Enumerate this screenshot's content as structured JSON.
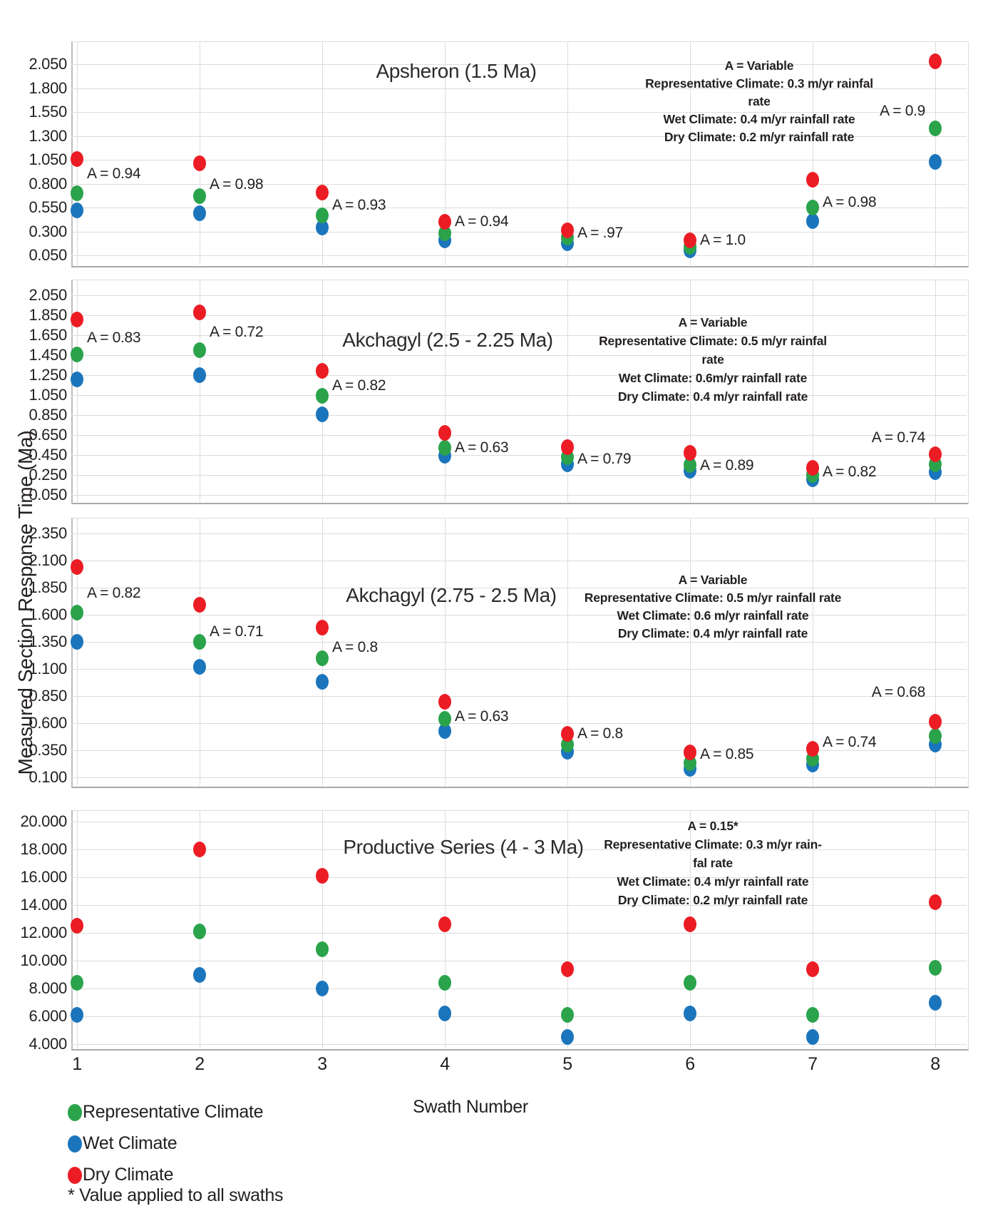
{
  "figure": {
    "y_axis_label": "Measured Section Response Time (Ma)",
    "x_axis_label": "Swath Number",
    "x_ticks": [
      "1",
      "2",
      "3",
      "4",
      "5",
      "6",
      "7",
      "8"
    ],
    "footnote": "* Value applied to all swaths"
  },
  "colors": {
    "representative": "#2AA34B",
    "wet": "#1B75BC",
    "dry": "#EC1C24",
    "grid": "#DCDCDC",
    "axis": "#A9A9A9",
    "text": "#231F20"
  },
  "legend": [
    {
      "series": "representative",
      "label": "Representative Climate"
    },
    {
      "series": "wet",
      "label": "Wet Climate"
    },
    {
      "series": "dry",
      "label": "Dry Climate"
    }
  ],
  "chart_data": [
    {
      "type": "scatter",
      "title": "Apsheron (1.5 Ma)",
      "x": [
        1,
        2,
        3,
        4,
        5,
        6,
        7,
        8
      ],
      "xlabel": "Swath Number",
      "ylabel": "Measured Section Response Time (Ma)",
      "y_ticks": [
        "2.050",
        "1.800",
        "1.550",
        "1.300",
        "1.050",
        "0.800",
        "0.550",
        "0.300",
        "0.050"
      ],
      "ylim": [
        -0.05,
        2.29
      ],
      "grid": true,
      "series": [
        {
          "name": "Representative Climate",
          "key": "representative",
          "values": [
            0.7,
            0.67,
            0.47,
            0.28,
            0.24,
            0.14,
            0.55,
            1.38
          ]
        },
        {
          "name": "Wet Climate",
          "key": "wet",
          "values": [
            0.52,
            0.49,
            0.34,
            0.21,
            0.18,
            0.1,
            0.41,
            1.03
          ]
        },
        {
          "name": "Dry Climate",
          "key": "dry",
          "values": [
            1.06,
            1.01,
            0.71,
            0.4,
            0.31,
            0.21,
            0.84,
            2.08
          ]
        }
      ],
      "point_labels": [
        {
          "text": "A = 0.94",
          "swath": 1,
          "y": 0.9,
          "side": "right"
        },
        {
          "text": "A = 0.98",
          "swath": 2,
          "y": 0.79,
          "side": "right"
        },
        {
          "text": "A = 0.93",
          "swath": 3,
          "y": 0.57,
          "side": "right"
        },
        {
          "text": "A = 0.94",
          "swath": 4,
          "y": 0.4,
          "side": "right"
        },
        {
          "text": "A = .97",
          "swath": 5,
          "y": 0.28,
          "side": "right"
        },
        {
          "text": "A = 1.0",
          "swath": 6,
          "y": 0.21,
          "side": "right"
        },
        {
          "text": "A = 0.98",
          "swath": 7,
          "y": 0.6,
          "side": "right"
        },
        {
          "text": "A = 0.9",
          "swath": 8,
          "y": 1.56,
          "side": "left"
        }
      ],
      "annotation_lines": [
        "A = Variable",
        "Representative Climate: 0.3 m/yr rainfal",
        "rate",
        "Wet Climate: 0.4 m/yr rainfall rate",
        "Dry Climate: 0.2 m/yr rainfall rate"
      ]
    },
    {
      "type": "scatter",
      "title": "Akchagyl (2.5 - 2.25 Ma)",
      "x": [
        1,
        2,
        3,
        4,
        5,
        6,
        7,
        8
      ],
      "xlabel": "Swath Number",
      "ylabel": "Measured Section Response Time (Ma)",
      "y_ticks": [
        "2.050",
        "1.850",
        "1.650",
        "1.450",
        "1.250",
        "1.050",
        "0.850",
        "0.650",
        "0.450",
        "0.250",
        "0.050"
      ],
      "ylim": [
        0.0,
        2.21
      ],
      "grid": true,
      "series": [
        {
          "name": "Representative Climate",
          "key": "representative",
          "values": [
            1.46,
            1.5,
            1.04,
            0.52,
            0.43,
            0.35,
            0.25,
            0.36
          ]
        },
        {
          "name": "Wet Climate",
          "key": "wet",
          "values": [
            1.21,
            1.25,
            0.86,
            0.44,
            0.36,
            0.29,
            0.21,
            0.28
          ]
        },
        {
          "name": "Dry Climate",
          "key": "dry",
          "values": [
            1.81,
            1.88,
            1.29,
            0.67,
            0.53,
            0.47,
            0.32,
            0.46
          ]
        }
      ],
      "point_labels": [
        {
          "text": "A = 0.83",
          "swath": 1,
          "y": 1.62,
          "side": "right"
        },
        {
          "text": "A = 0.72",
          "swath": 2,
          "y": 1.68,
          "side": "right"
        },
        {
          "text": "A = 0.82",
          "swath": 3,
          "y": 1.14,
          "side": "right"
        },
        {
          "text": "A = 0.63",
          "swath": 4,
          "y": 0.52,
          "side": "right"
        },
        {
          "text": "A = 0.79",
          "swath": 5,
          "y": 0.41,
          "side": "right"
        },
        {
          "text": "A = 0.89",
          "swath": 6,
          "y": 0.34,
          "side": "right"
        },
        {
          "text": "A = 0.82",
          "swath": 7,
          "y": 0.28,
          "side": "right"
        },
        {
          "text": "A = 0.74",
          "swath": 8,
          "y": 0.62,
          "side": "left"
        }
      ],
      "annotation_lines": [
        "A = Variable",
        "Representative Climate: 0.5 m/yr rainfal",
        "rate",
        "Wet Climate: 0.6m/yr rainfall rate",
        "Dry Climate: 0.4 m/yr rainfall rate"
      ]
    },
    {
      "type": "scatter",
      "title": "Akchagyl (2.75 - 2.5 Ma)",
      "x": [
        1,
        2,
        3,
        4,
        5,
        6,
        7,
        8
      ],
      "xlabel": "Swath Number",
      "ylabel": "Measured Section Response Time (Ma)",
      "y_ticks": [
        "2.350",
        "2.100",
        "1.850",
        "1.600",
        "1.350",
        "1.100",
        "0.850",
        "0.600",
        "0.350",
        "0.100"
      ],
      "ylim": [
        0.0,
        2.57
      ],
      "grid": true,
      "series": [
        {
          "name": "Representative Climate",
          "key": "representative",
          "values": [
            1.62,
            1.35,
            1.2,
            0.64,
            0.4,
            0.23,
            0.27,
            0.48
          ]
        },
        {
          "name": "Wet Climate",
          "key": "wet",
          "values": [
            1.35,
            1.12,
            0.98,
            0.53,
            0.34,
            0.18,
            0.22,
            0.4
          ]
        },
        {
          "name": "Dry Climate",
          "key": "dry",
          "values": [
            2.04,
            1.69,
            1.48,
            0.8,
            0.5,
            0.33,
            0.36,
            0.61
          ]
        }
      ],
      "point_labels": [
        {
          "text": "A = 0.82",
          "swath": 1,
          "y": 1.8,
          "side": "right"
        },
        {
          "text": "A = 0.71",
          "swath": 2,
          "y": 1.44,
          "side": "right"
        },
        {
          "text": "A = 0.8",
          "swath": 3,
          "y": 1.3,
          "side": "right"
        },
        {
          "text": "A = 0.63",
          "swath": 4,
          "y": 0.66,
          "side": "right"
        },
        {
          "text": "A = 0.8",
          "swath": 5,
          "y": 0.5,
          "side": "right"
        },
        {
          "text": "A = 0.85",
          "swath": 6,
          "y": 0.31,
          "side": "right"
        },
        {
          "text": "A = 0.74",
          "swath": 7,
          "y": 0.42,
          "side": "right"
        },
        {
          "text": "A = 0.68",
          "swath": 8,
          "y": 0.88,
          "side": "left"
        }
      ],
      "annotation_lines": [
        "A = Variable",
        "Representative Climate: 0.5 m/yr rainfall rate",
        "Wet Climate: 0.6 m/yr rainfall rate",
        "Dry Climate: 0.4 m/yr rainfall rate"
      ]
    },
    {
      "type": "scatter",
      "title": "Productive Series (4 - 3 Ma)",
      "x": [
        1,
        2,
        3,
        4,
        5,
        6,
        7,
        8
      ],
      "xlabel": "Swath Number",
      "ylabel": "Measured Section Response Time (Ma)",
      "y_ticks": [
        "20.000",
        "18.000",
        "16.000",
        "14.000",
        "12.000",
        "10.000",
        "8.000",
        "6.000",
        "4.000"
      ],
      "ylim": [
        3.7,
        20.8
      ],
      "grid": true,
      "series": [
        {
          "name": "Representative Climate",
          "key": "representative",
          "values": [
            8.4,
            12.1,
            10.8,
            8.4,
            6.1,
            8.4,
            6.1,
            9.5
          ]
        },
        {
          "name": "Wet Climate",
          "key": "wet",
          "values": [
            6.1,
            9.0,
            8.0,
            6.2,
            4.5,
            6.2,
            4.5,
            7.0
          ]
        },
        {
          "name": "Dry Climate",
          "key": "dry",
          "values": [
            12.5,
            18.0,
            16.1,
            12.6,
            9.4,
            12.6,
            9.4,
            14.2
          ]
        }
      ],
      "point_labels": [],
      "annotation_lines": [
        "A = 0.15*",
        "Representative Climate: 0.3 m/yr rain-",
        "fal rate",
        "Wet Climate: 0.4 m/yr rainfall rate",
        "Dry Climate: 0.2 m/yr rainfall rate"
      ]
    }
  ]
}
